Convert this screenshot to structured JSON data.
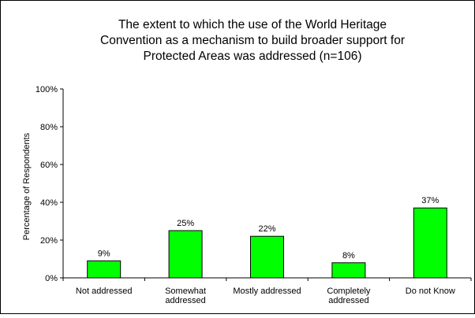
{
  "chart_data": {
    "type": "bar",
    "title_lines": [
      "The extent to which the use of the World Heritage",
      "Convention as a mechanism to build broader support for",
      "Protected Areas was addressed (n=106)"
    ],
    "ylabel": "Percentage of Respondents",
    "xlabel": "",
    "ylim": [
      0,
      100
    ],
    "y_ticks": [
      0,
      20,
      40,
      60,
      80,
      100
    ],
    "y_tick_labels": [
      "0%",
      "20%",
      "40%",
      "60%",
      "80%",
      "100%"
    ],
    "categories": [
      [
        "Not addressed"
      ],
      [
        "Somewhat",
        "addressed"
      ],
      [
        "Mostly addressed"
      ],
      [
        "Completely",
        "addressed"
      ],
      [
        "Do not Know"
      ]
    ],
    "values": [
      9,
      25,
      22,
      8,
      37
    ],
    "data_labels": [
      "9%",
      "25%",
      "22%",
      "8%",
      "37%"
    ],
    "bar_color": "#00ff00",
    "bar_stroke": "#000000",
    "grid": false,
    "legend": "none"
  }
}
